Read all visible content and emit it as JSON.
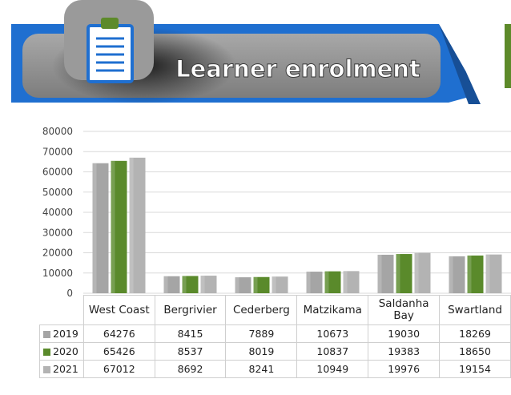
{
  "banner": {
    "title": "Learner enrolment",
    "icon": "clipboard-icon",
    "colors": {
      "blue": "#1f6fd0",
      "grey": "#8c8c8c",
      "dark": "#2e2e2e",
      "green": "#5d8a2a"
    }
  },
  "chart_data": {
    "type": "bar",
    "categories": [
      "West Coast",
      "Bergrivier",
      "Cederberg",
      "Matzikama",
      "Saldanha Bay",
      "Swartland"
    ],
    "series": [
      {
        "name": "2019",
        "color": "#a5a5a5",
        "values": [
          64276,
          8415,
          7889,
          10673,
          19030,
          18269
        ]
      },
      {
        "name": "2020",
        "color": "#5a8a2b",
        "values": [
          65426,
          8537,
          8019,
          10837,
          19383,
          18650
        ]
      },
      {
        "name": "2021",
        "color": "#b3b3b3",
        "values": [
          67012,
          8692,
          8241,
          10949,
          19976,
          19154
        ]
      }
    ],
    "yticks": [
      0,
      10000,
      20000,
      30000,
      40000,
      50000,
      60000,
      70000,
      80000
    ],
    "ylim": [
      0,
      80000
    ],
    "grid": true,
    "legend": "data-table"
  }
}
